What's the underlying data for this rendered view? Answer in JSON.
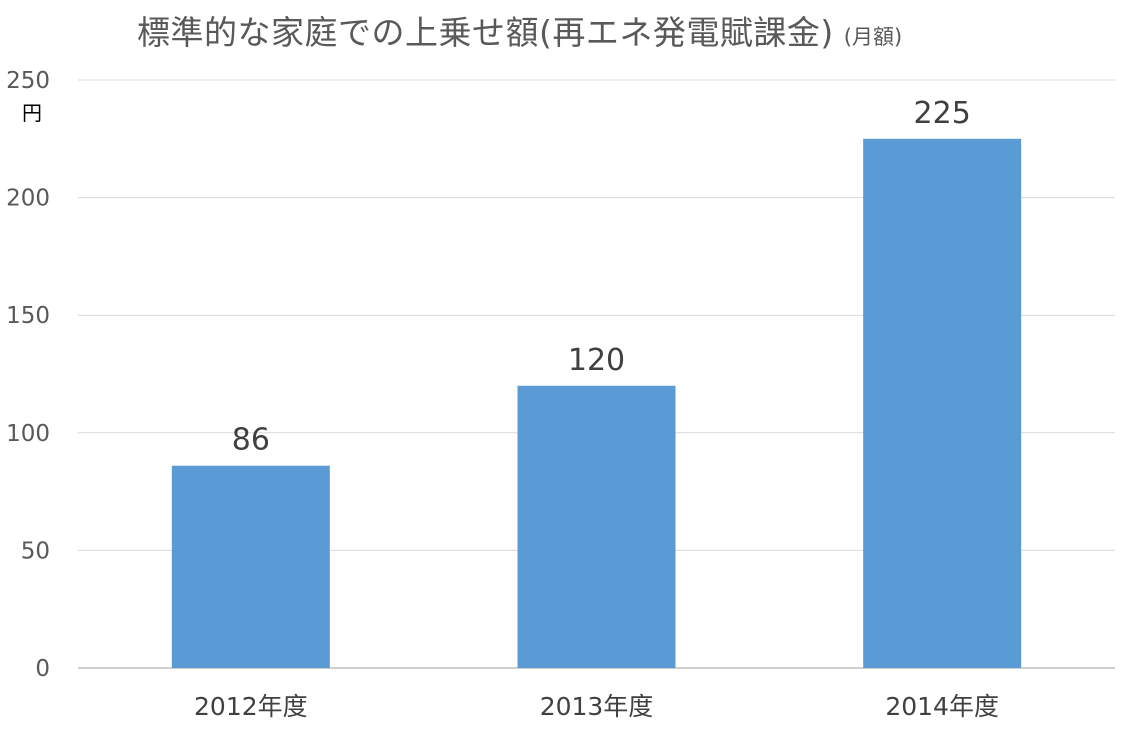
{
  "chart_data": {
    "type": "bar",
    "title": "標準的な家庭での上乗せ額(再エネ発電賦課金)",
    "subtitle": "(月額)",
    "ylabel": "円",
    "xlabel": "",
    "categories": [
      "2012年度",
      "2013年度",
      "2014年度"
    ],
    "series": [
      {
        "values": [
          86,
          120,
          225
        ]
      }
    ],
    "data_labels": [
      "86",
      "120",
      "225"
    ],
    "ylim": [
      0,
      250
    ],
    "yticks": [
      0,
      50,
      100,
      150,
      200,
      250
    ],
    "ytick_labels": [
      "0",
      "50",
      "100",
      "150",
      "200",
      "250"
    ],
    "grid": true,
    "legend": "none",
    "colors": {
      "bar": "#5B9BD5",
      "grid": "#D9D9D9",
      "axis": "#BFBFBF"
    }
  }
}
